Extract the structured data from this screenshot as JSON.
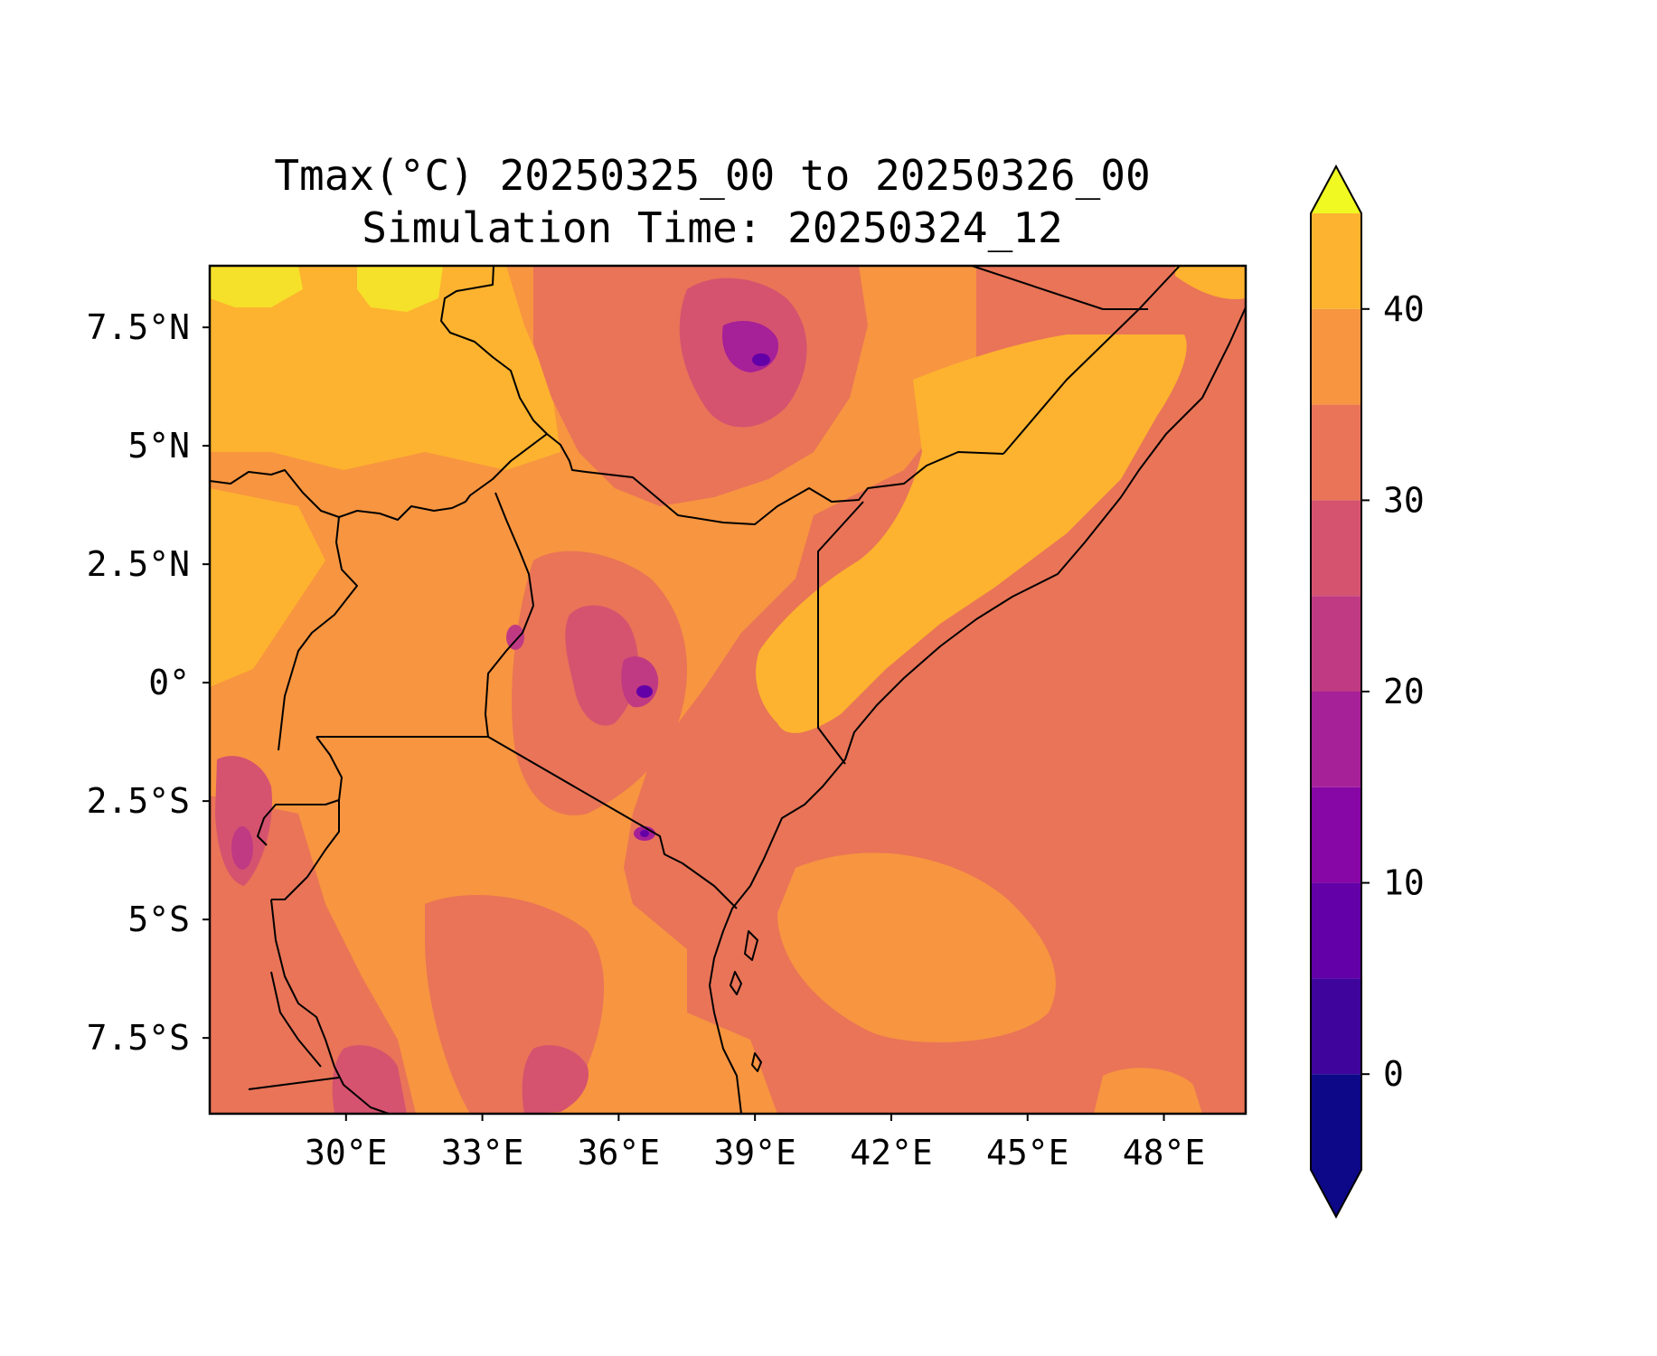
{
  "title": {
    "line1": "Tmax(°C) 20250325_00 to 20250326_00",
    "line2": "Simulation Time: 20250324_12"
  },
  "map": {
    "lon_range": [
      27.0,
      49.8
    ],
    "lat_range": [
      -9.1,
      8.8
    ],
    "background_level_color": "#e97458",
    "x_ticks": [
      {
        "lon": 30,
        "label": "30°E"
      },
      {
        "lon": 33,
        "label": "33°E"
      },
      {
        "lon": 36,
        "label": "36°E"
      },
      {
        "lon": 39,
        "label": "39°E"
      },
      {
        "lon": 42,
        "label": "42°E"
      },
      {
        "lon": 45,
        "label": "45°E"
      },
      {
        "lon": 48,
        "label": "48°E"
      }
    ],
    "y_ticks": [
      {
        "lat": 7.5,
        "label": "7.5°N"
      },
      {
        "lat": 5,
        "label": "5°N"
      },
      {
        "lat": 2.5,
        "label": "2.5°N"
      },
      {
        "lat": 0,
        "label": "0°"
      },
      {
        "lat": -2.5,
        "label": "2.5°S"
      },
      {
        "lat": -5,
        "label": "5°S"
      },
      {
        "lat": -7.5,
        "label": "7.5°S"
      }
    ]
  },
  "colorbar": {
    "levels": [
      -5,
      0,
      5,
      10,
      15,
      20,
      25,
      30,
      35,
      40,
      45
    ],
    "colors": [
      "#0d0887",
      "#3e049c",
      "#6300a7",
      "#8606a6",
      "#a62098",
      "#c03a83",
      "#d5536f",
      "#e97458",
      "#f89540",
      "#fdb32f",
      "#f5e02a"
    ],
    "under_color": "#0d0887",
    "over_color": "#f0f921",
    "tick_labels": [
      {
        "value": 0,
        "label": "0"
      },
      {
        "value": 10,
        "label": "10"
      },
      {
        "value": 20,
        "label": "20"
      },
      {
        "value": 30,
        "label": "30"
      },
      {
        "value": 40,
        "label": "40"
      }
    ]
  }
}
